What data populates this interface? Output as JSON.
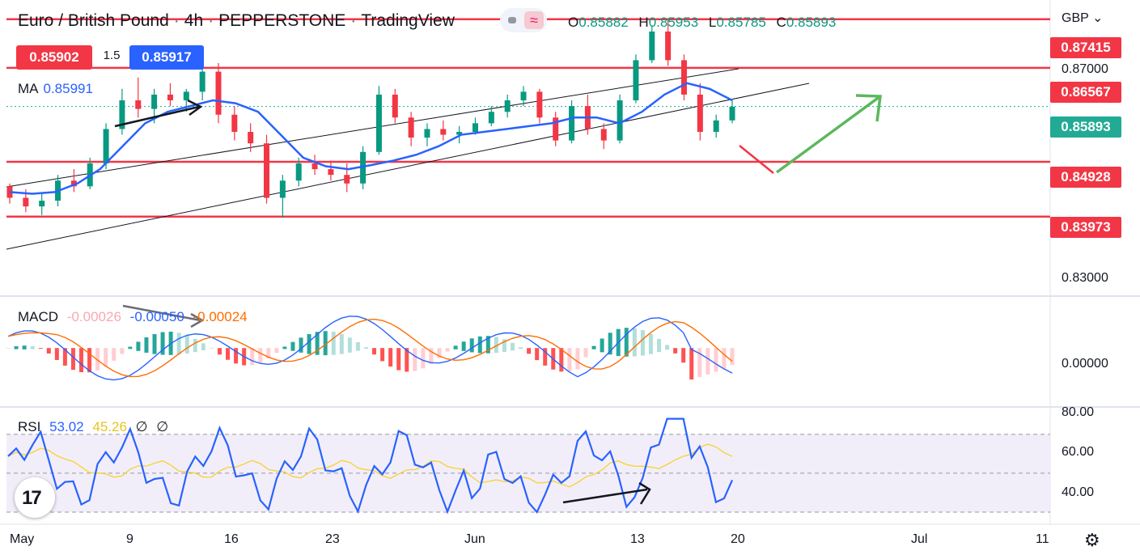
{
  "header": {
    "symbol": "Euro / British Pound",
    "interval": "4h",
    "exchange": "PEPPERSTONE",
    "platform": "TradingView",
    "o_label": "O",
    "o": "0.85882",
    "h_label": "H",
    "h": "0.85953",
    "l_label": "L",
    "l": "0.85785",
    "c_label": "C",
    "c": "0.85893",
    "currency": "GBP"
  },
  "trade": {
    "sell": "0.85902",
    "spread": "1.5",
    "buy": "0.85917"
  },
  "ma": {
    "label": "MA",
    "value": "0.85991"
  },
  "macd": {
    "label": "MACD",
    "hist": "-0.00026",
    "macd": "-0.00050",
    "signal": "-0.00024"
  },
  "rsi": {
    "label": "RSI",
    "value": "53.02",
    "ma": "45.26",
    "extra1": "∅",
    "extra2": "∅"
  },
  "price_axis": {
    "levels": [
      "0.87415",
      "0.86567",
      "0.85893",
      "0.84928",
      "0.83973"
    ],
    "ticks": [
      "0.87000",
      "0.83000"
    ],
    "macd_tick": "0.00000",
    "rsi_ticks": [
      "80.00",
      "60.00",
      "40.00"
    ]
  },
  "time_axis": [
    "May",
    "9",
    "16",
    "23",
    "Jun",
    "13",
    "20",
    "Jul",
    "11"
  ],
  "colors": {
    "up": "#089981",
    "down": "#f23645",
    "ma": "#2962ff",
    "level": "#f23645",
    "current": "#22ab94",
    "arrow_green": "#5cb85c",
    "macd_signal": "#ff6d00",
    "rsi_ma": "#f7d33d",
    "rsi_band": "#ede7f6"
  },
  "icons": {
    "logo": "tradingview-logo-icon",
    "settings": "gear-icon"
  },
  "chart_data": {
    "type": "candlestick",
    "ylim": [
      0.826,
      0.8775
    ],
    "x_range": [
      "2022-05-01",
      "2022-07-13"
    ],
    "horizontal_levels": [
      0.87415,
      0.86567,
      0.84928,
      0.83973
    ],
    "current_price": 0.85893,
    "ohlc_4h_approx": [
      [
        0.845,
        0.8455,
        0.842,
        0.843
      ],
      [
        0.843,
        0.8445,
        0.8405,
        0.8415
      ],
      [
        0.8415,
        0.844,
        0.84,
        0.8425
      ],
      [
        0.8425,
        0.847,
        0.8415,
        0.846
      ],
      [
        0.846,
        0.848,
        0.844,
        0.845
      ],
      [
        0.845,
        0.85,
        0.8445,
        0.849
      ],
      [
        0.849,
        0.856,
        0.848,
        0.855
      ],
      [
        0.855,
        0.862,
        0.854,
        0.86
      ],
      [
        0.86,
        0.864,
        0.857,
        0.8585
      ],
      [
        0.8585,
        0.862,
        0.856,
        0.861
      ],
      [
        0.861,
        0.863,
        0.859,
        0.86
      ],
      [
        0.86,
        0.862,
        0.858,
        0.8615
      ],
      [
        0.8615,
        0.866,
        0.86,
        0.865
      ],
      [
        0.865,
        0.8665,
        0.856,
        0.8575
      ],
      [
        0.8575,
        0.859,
        0.853,
        0.8545
      ],
      [
        0.8545,
        0.856,
        0.851,
        0.8525
      ],
      [
        0.8525,
        0.854,
        0.842,
        0.843
      ],
      [
        0.843,
        0.847,
        0.8395,
        0.846
      ],
      [
        0.846,
        0.85,
        0.845,
        0.849
      ],
      [
        0.849,
        0.8505,
        0.847,
        0.848
      ],
      [
        0.848,
        0.8495,
        0.846,
        0.847
      ],
      [
        0.847,
        0.849,
        0.844,
        0.8455
      ],
      [
        0.8455,
        0.852,
        0.8445,
        0.851
      ],
      [
        0.851,
        0.8625,
        0.8505,
        0.861
      ],
      [
        0.861,
        0.862,
        0.856,
        0.857
      ],
      [
        0.857,
        0.858,
        0.852,
        0.8535
      ],
      [
        0.8535,
        0.856,
        0.852,
        0.855
      ],
      [
        0.855,
        0.8565,
        0.853,
        0.854
      ],
      [
        0.854,
        0.8555,
        0.8525,
        0.8545
      ],
      [
        0.8545,
        0.857,
        0.854,
        0.856
      ],
      [
        0.856,
        0.859,
        0.8555,
        0.858
      ],
      [
        0.858,
        0.861,
        0.857,
        0.86
      ],
      [
        0.86,
        0.8625,
        0.859,
        0.8615
      ],
      [
        0.8615,
        0.862,
        0.856,
        0.857
      ],
      [
        0.857,
        0.858,
        0.852,
        0.853
      ],
      [
        0.853,
        0.86,
        0.8525,
        0.859
      ],
      [
        0.859,
        0.861,
        0.854,
        0.855
      ],
      [
        0.855,
        0.856,
        0.8515,
        0.853
      ],
      [
        0.853,
        0.861,
        0.8525,
        0.86
      ],
      [
        0.86,
        0.868,
        0.8595,
        0.867
      ],
      [
        0.867,
        0.873,
        0.8665,
        0.872
      ],
      [
        0.872,
        0.874,
        0.866,
        0.867
      ],
      [
        0.867,
        0.868,
        0.86,
        0.861
      ],
      [
        0.861,
        0.863,
        0.853,
        0.8545
      ],
      [
        0.8545,
        0.8575,
        0.8535,
        0.8565
      ],
      [
        0.8565,
        0.86,
        0.856,
        0.8589
      ]
    ],
    "ma_values": [
      0.844,
      0.8437,
      0.844,
      0.8455,
      0.848,
      0.852,
      0.856,
      0.858,
      0.859,
      0.86,
      0.8595,
      0.858,
      0.854,
      0.85,
      0.8485,
      0.848,
      0.8487,
      0.8495,
      0.8505,
      0.852,
      0.854,
      0.8545,
      0.855,
      0.8555,
      0.856,
      0.857,
      0.857,
      0.856,
      0.858,
      0.861,
      0.863,
      0.862,
      0.86
    ],
    "macd_ylim": [
      -0.006,
      0.005
    ],
    "rsi_ylim": [
      25,
      82
    ]
  }
}
